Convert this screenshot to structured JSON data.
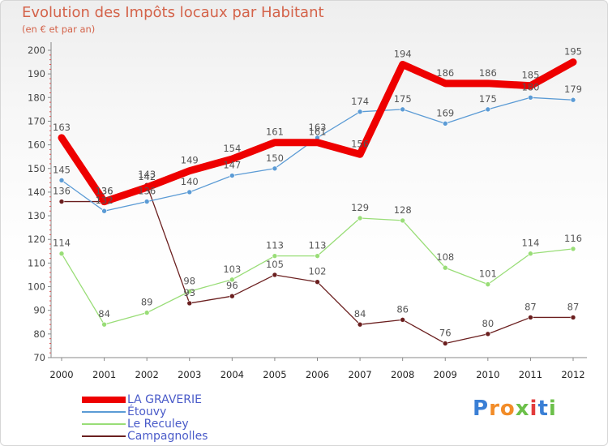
{
  "chart_data": {
    "type": "line",
    "title": "Evolution des Impôts locaux par Habitant",
    "subtitle": "(en € et par an)",
    "xlabel": "",
    "ylabel": "",
    "x": [
      "2000",
      "2001",
      "2002",
      "2003",
      "2004",
      "2005",
      "2006",
      "2007",
      "2008",
      "2009",
      "2010",
      "2011",
      "2012"
    ],
    "ylim": [
      70,
      200
    ],
    "yticks": [
      "70",
      "80",
      "90",
      "100",
      "110",
      "120",
      "130",
      "140",
      "150",
      "160",
      "170",
      "180",
      "190",
      "200"
    ],
    "grid": false,
    "legend_position": "bottom-left",
    "series": [
      {
        "name": "LA GRAVERIE",
        "color": "#ee0000",
        "values": [
          163,
          136,
          142,
          149,
          154,
          161,
          161,
          156,
          194,
          186,
          186,
          185,
          195
        ]
      },
      {
        "name": "Étouvy",
        "color": "#5b9bd5",
        "values": [
          145,
          132,
          136,
          140,
          147,
          150,
          163,
          174,
          175,
          169,
          175,
          180,
          179
        ]
      },
      {
        "name": "Le Reculey",
        "color": "#99dd77",
        "values": [
          114,
          84,
          89,
          98,
          103,
          113,
          113,
          129,
          128,
          108,
          101,
          114,
          116
        ]
      },
      {
        "name": "Campagnolles",
        "color": "#6b1f1f",
        "values": [
          136,
          136,
          143,
          93,
          96,
          105,
          102,
          84,
          86,
          76,
          80,
          87,
          87
        ]
      }
    ]
  },
  "brand": {
    "letters": [
      "P",
      "r",
      "o",
      "x",
      "i",
      "t",
      "i"
    ],
    "colors": [
      "#3a7fd5",
      "#f28c28",
      "#f28c28",
      "#6cc04a",
      "#e23c3c",
      "#3a7fd5",
      "#6cc04a"
    ]
  }
}
